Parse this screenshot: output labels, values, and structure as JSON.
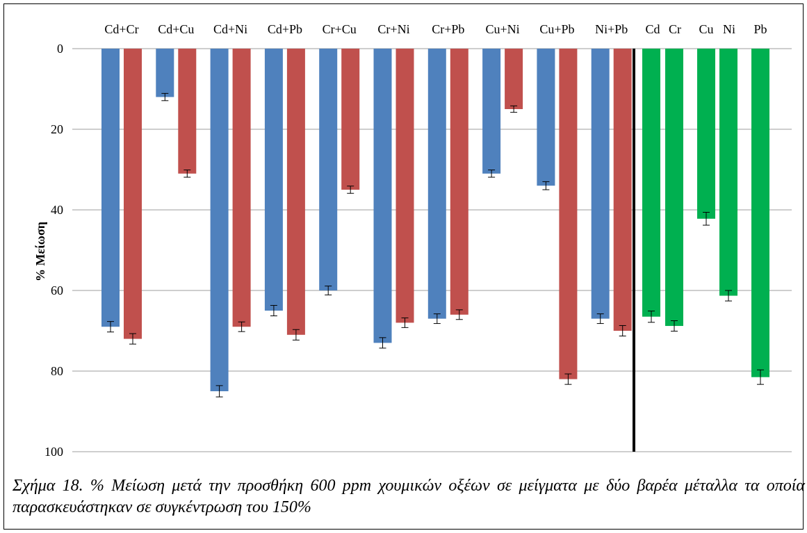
{
  "chart_data": {
    "type": "bar",
    "title": "",
    "ylabel": "% Μείωση",
    "xlabel": "",
    "ylim": [
      0,
      100
    ],
    "y_ticks": [
      0,
      20,
      40,
      60,
      80,
      100
    ],
    "y_inverted": true,
    "grid": true,
    "groups": [
      {
        "category": "Cd+Cr",
        "values": [
          69,
          72
        ],
        "errors": [
          1.3,
          1.3
        ],
        "colors": [
          "#4f81bd",
          "#c0504d"
        ]
      },
      {
        "category": "Cd+Cu",
        "values": [
          12,
          31
        ],
        "errors": [
          0.9,
          0.9
        ],
        "colors": [
          "#4f81bd",
          "#c0504d"
        ]
      },
      {
        "category": "Cd+Ni",
        "values": [
          85,
          69
        ],
        "errors": [
          1.4,
          1.2
        ],
        "colors": [
          "#4f81bd",
          "#c0504d"
        ]
      },
      {
        "category": "Cd+Pb",
        "values": [
          65,
          71
        ],
        "errors": [
          1.3,
          1.3
        ],
        "colors": [
          "#4f81bd",
          "#c0504d"
        ]
      },
      {
        "category": "Cr+Cu",
        "values": [
          60,
          35
        ],
        "errors": [
          1.1,
          0.9
        ],
        "colors": [
          "#4f81bd",
          "#c0504d"
        ]
      },
      {
        "category": "Cr+Ni",
        "values": [
          73,
          68
        ],
        "errors": [
          1.3,
          1.2
        ],
        "colors": [
          "#4f81bd",
          "#c0504d"
        ]
      },
      {
        "category": "Cr+Pb",
        "values": [
          67,
          66
        ],
        "errors": [
          1.2,
          1.2
        ],
        "colors": [
          "#4f81bd",
          "#c0504d"
        ]
      },
      {
        "category": "Cu+Ni",
        "values": [
          31,
          15
        ],
        "errors": [
          0.9,
          0.8
        ],
        "colors": [
          "#4f81bd",
          "#c0504d"
        ]
      },
      {
        "category": "Cu+Pb",
        "values": [
          34,
          82
        ],
        "errors": [
          1.0,
          1.3
        ],
        "colors": [
          "#4f81bd",
          "#c0504d"
        ]
      },
      {
        "category": "Ni+Pb",
        "values": [
          67,
          70
        ],
        "errors": [
          1.2,
          1.3
        ],
        "colors": [
          "#4f81bd",
          "#c0504d"
        ]
      }
    ],
    "singles": [
      {
        "category": "Cd",
        "value": 66.5,
        "error": 1.4,
        "color": "#00b050"
      },
      {
        "category": "Cr",
        "value": 68.8,
        "error": 1.3,
        "color": "#00b050"
      },
      {
        "category": "Cu",
        "value": 42.2,
        "error": 1.6,
        "color": "#00b050"
      },
      {
        "category": "Ni",
        "value": 61.3,
        "error": 1.3,
        "color": "#00b050"
      },
      {
        "category": "Pb",
        "value": 81.5,
        "error": 1.8,
        "color": "#00b050"
      }
    ]
  },
  "caption": "Σχήμα 18. % Μείωση μετά την προσθήκη 600 ppm χουμικών οξέων σε μείγματα με δύο βαρέα μέταλλα τα οποία παρασκευάστηκαν σε συγκέντρωση του 150%"
}
